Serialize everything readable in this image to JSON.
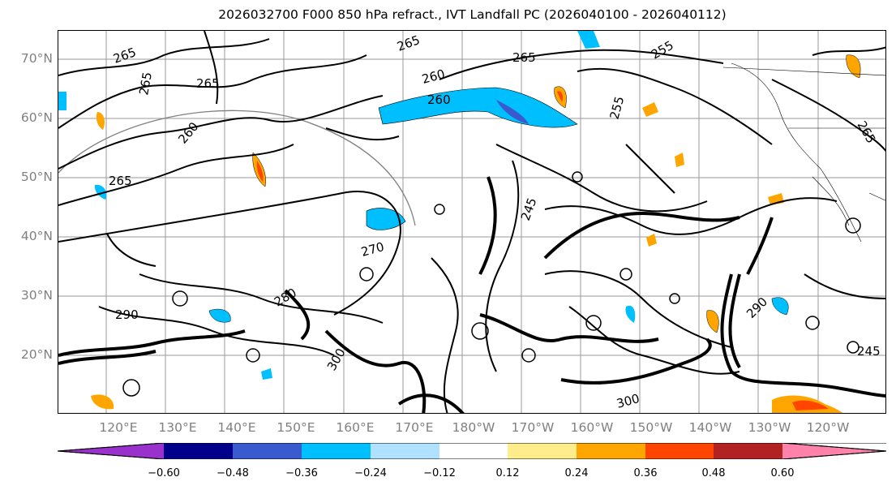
{
  "title": "2026032700 F000 850 hPa refract., IVT Landfall PC (2026040100 - 2026040112)",
  "lat_labels": [
    "70°N",
    "60°N",
    "50°N",
    "40°N",
    "30°N",
    "20°N"
  ],
  "lon_labels": [
    "120°E",
    "130°E",
    "140°E",
    "150°E",
    "160°E",
    "170°E",
    "180°W",
    "170°W",
    "160°W",
    "150°W",
    "140°W",
    "130°W",
    "120°W"
  ],
  "contour_labels": [
    "265",
    "265",
    "265",
    "265",
    "260",
    "265",
    "260",
    "255",
    "255",
    "265",
    "260",
    "265",
    "245",
    "270",
    "290",
    "280",
    "300",
    "245",
    "290",
    "300"
  ],
  "colorbar": {
    "colors": [
      "#9932cc",
      "#00008b",
      "#3a5bcf",
      "#00bfff",
      "#b0e2ff",
      "#ffffff",
      "#ffec8b",
      "#ffa500",
      "#ff4500",
      "#b22222",
      "#ff82ab"
    ],
    "ticks": [
      "−0.60",
      "−0.48",
      "−0.36",
      "−0.24",
      "−0.12",
      "0.12",
      "0.24",
      "0.36",
      "0.48",
      "0.60"
    ]
  }
}
